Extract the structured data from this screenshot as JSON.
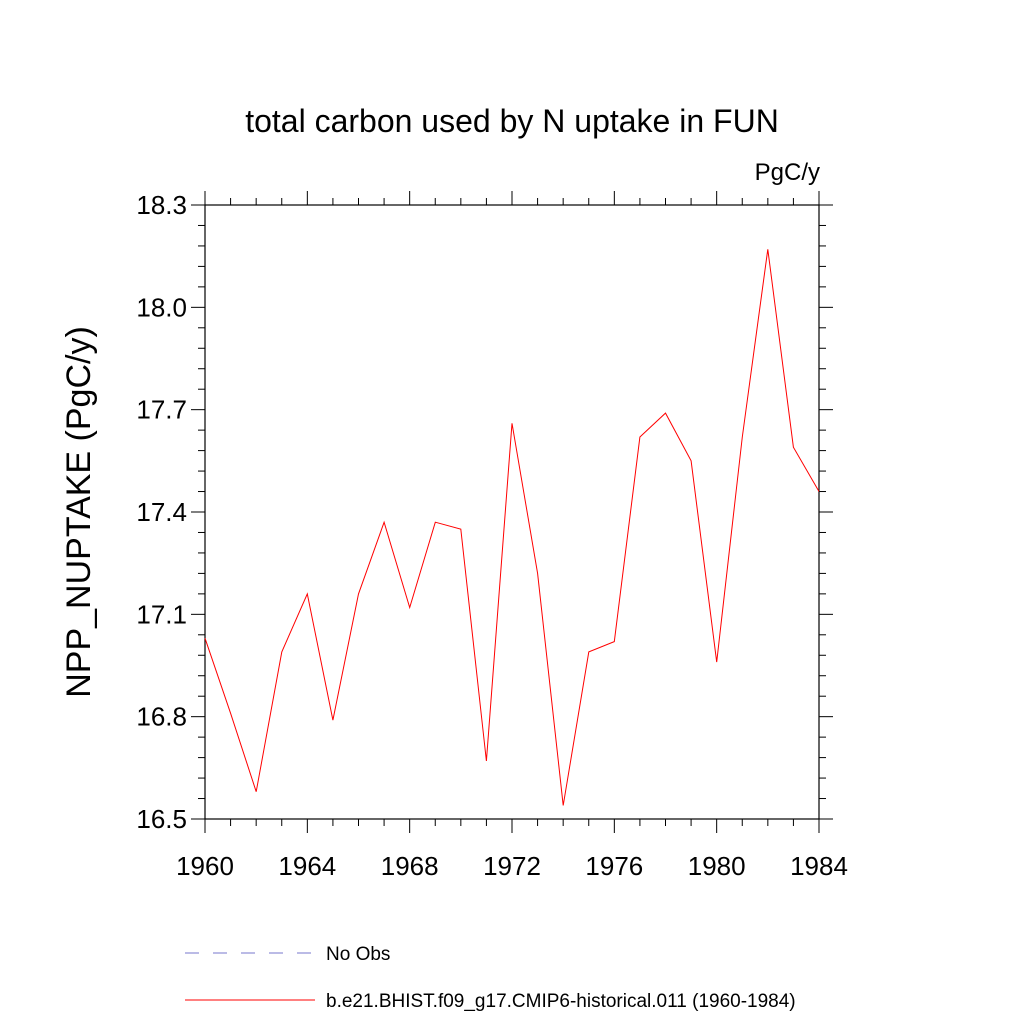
{
  "chart_data": {
    "type": "line",
    "title": "total carbon used by N uptake in FUN",
    "units_label": "PgC/y",
    "ylabel": "NPP_NUPTAKE  (PgC/y)",
    "xlabel": "",
    "xlim": [
      1960,
      1984
    ],
    "ylim": [
      16.5,
      18.3
    ],
    "x_ticks": [
      1960,
      1964,
      1968,
      1972,
      1976,
      1980,
      1984
    ],
    "x_tick_labels": [
      "1960",
      "1964",
      "1968",
      "1972",
      "1976",
      "1980",
      "1984"
    ],
    "y_ticks": [
      16.5,
      16.8,
      17.1,
      17.4,
      17.7,
      18.0,
      18.3
    ],
    "y_tick_labels": [
      "16.5",
      "16.8",
      "17.1",
      "17.4",
      "17.7",
      "18.0",
      "18.3"
    ],
    "grid": false,
    "legend_position": "bottom",
    "series": [
      {
        "name": "b.e21.BHIST.f09_g17.CMIP6-historical.011 (1960-1984)",
        "color": "#ff0000",
        "style": "solid",
        "x": [
          1960,
          1961,
          1962,
          1963,
          1964,
          1965,
          1966,
          1967,
          1968,
          1969,
          1970,
          1971,
          1972,
          1973,
          1974,
          1975,
          1976,
          1977,
          1978,
          1979,
          1980,
          1981,
          1982,
          1983,
          1984
        ],
        "y": [
          17.03,
          16.81,
          16.58,
          16.99,
          17.16,
          16.79,
          17.16,
          17.37,
          17.12,
          17.37,
          17.35,
          16.67,
          17.66,
          17.22,
          16.54,
          16.99,
          17.02,
          17.62,
          17.69,
          17.55,
          16.96,
          17.62,
          18.17,
          17.59,
          17.46
        ]
      }
    ],
    "legend": [
      {
        "label": "No Obs",
        "color": "#7777cc",
        "style": "dashed"
      },
      {
        "label": "b.e21.BHIST.f09_g17.CMIP6-historical.011 (1960-1984)",
        "color": "#ff0000",
        "style": "solid"
      }
    ]
  }
}
